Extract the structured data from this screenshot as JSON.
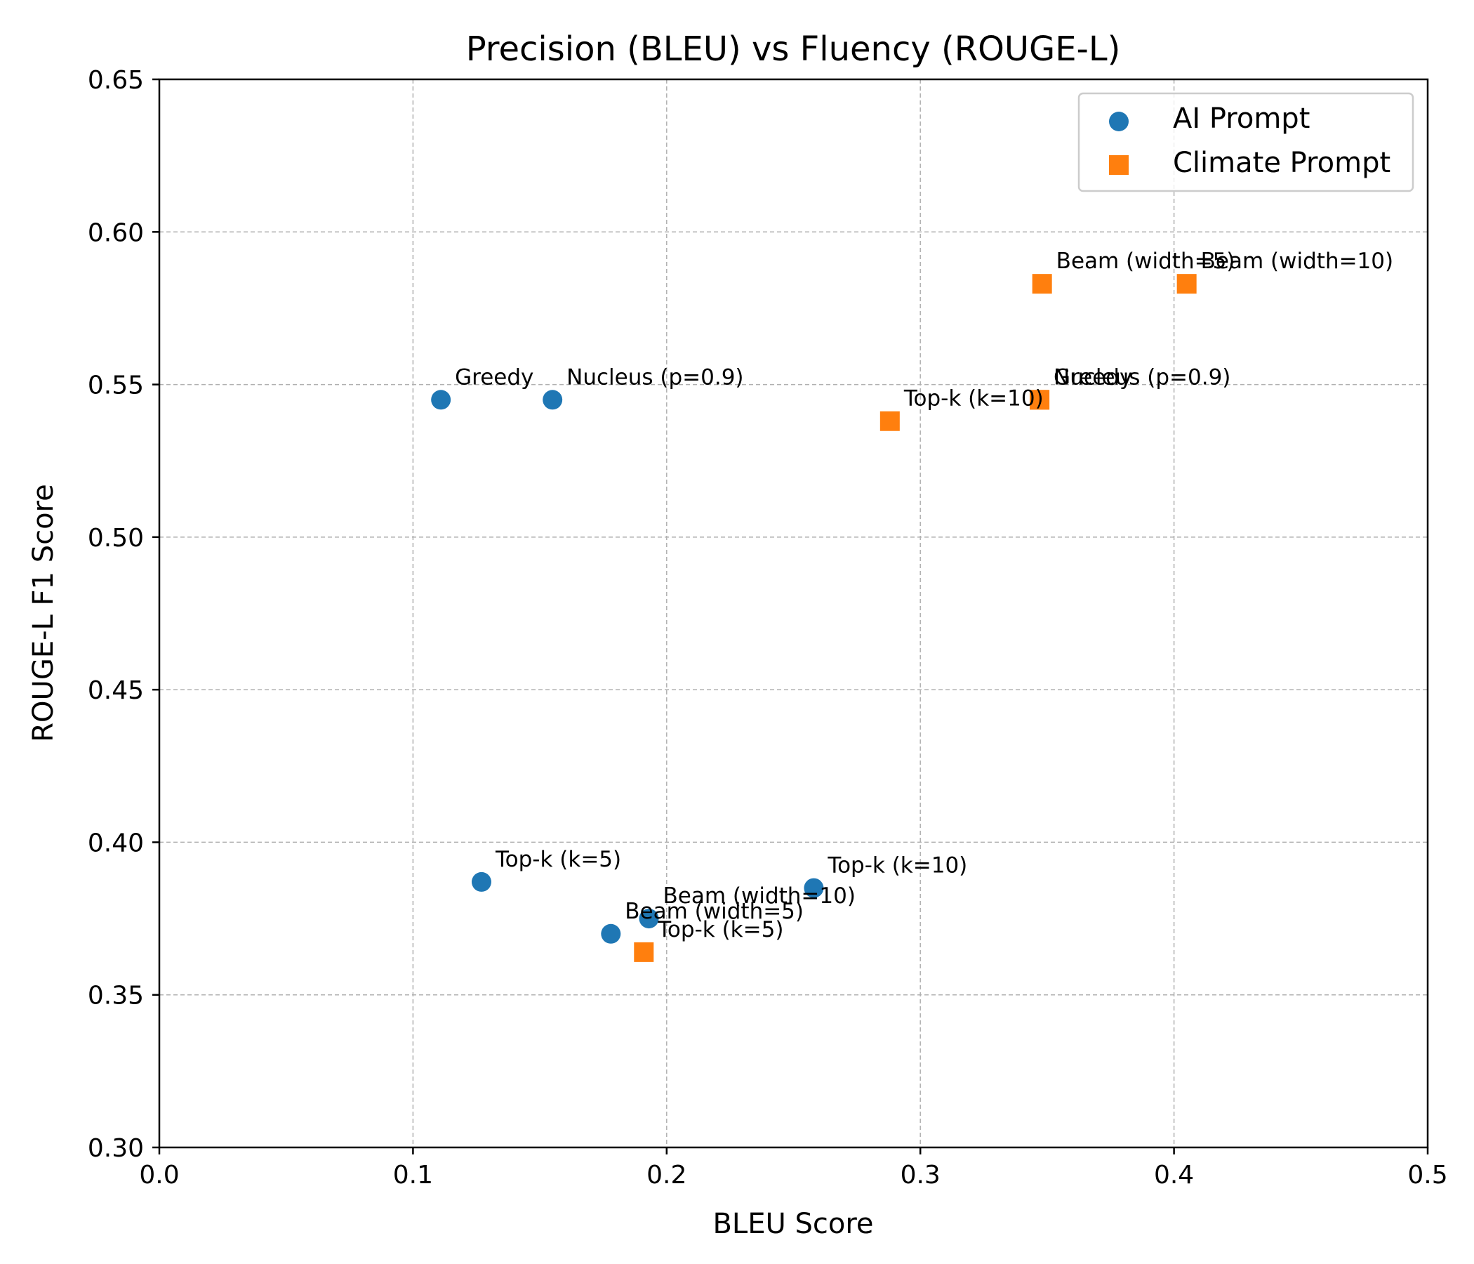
{
  "chart_data": {
    "type": "scatter",
    "title": "Precision (BLEU) vs Fluency (ROUGE-L)",
    "xlabel": "BLEU Score",
    "ylabel": "ROUGE-L F1 Score",
    "xlim": [
      0.0,
      0.5
    ],
    "ylim": [
      0.3,
      0.65
    ],
    "xticks": [
      "0.0",
      "0.1",
      "0.2",
      "0.3",
      "0.4",
      "0.5"
    ],
    "yticks": [
      "0.30",
      "0.35",
      "0.40",
      "0.45",
      "0.50",
      "0.55",
      "0.60",
      "0.65"
    ],
    "grid": true,
    "legend_position": "top-right",
    "series": [
      {
        "name": "AI Prompt",
        "marker": "circle",
        "color": "#1f77b4",
        "points": [
          {
            "label": "Greedy",
            "x": 0.111,
            "y": 0.545
          },
          {
            "label": "Nucleus (p=0.9)",
            "x": 0.155,
            "y": 0.545
          },
          {
            "label": "Top-k (k=5)",
            "x": 0.127,
            "y": 0.387
          },
          {
            "label": "Top-k (k=10)",
            "x": 0.258,
            "y": 0.385
          },
          {
            "label": "Beam (width=10)",
            "x": 0.193,
            "y": 0.375
          },
          {
            "label": "Beam (width=5)",
            "x": 0.178,
            "y": 0.37
          }
        ]
      },
      {
        "name": "Climate Prompt",
        "marker": "square",
        "color": "#ff7f0e",
        "points": [
          {
            "label": "Beam (width=5)",
            "x": 0.348,
            "y": 0.583
          },
          {
            "label": "Beam (width=10)",
            "x": 0.405,
            "y": 0.583
          },
          {
            "label": "Greedy",
            "x": 0.347,
            "y": 0.545
          },
          {
            "label": "Nucleus (p=0.9)",
            "x": 0.347,
            "y": 0.545
          },
          {
            "label": "Top-k (k=10)",
            "x": 0.288,
            "y": 0.538
          },
          {
            "label": "Top-k (k=5)",
            "x": 0.191,
            "y": 0.364
          }
        ]
      }
    ]
  }
}
